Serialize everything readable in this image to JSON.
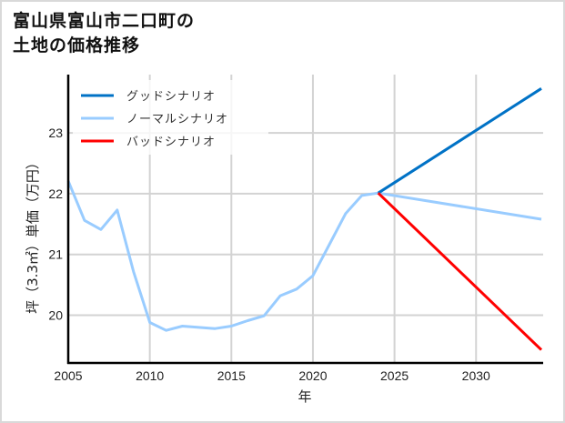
{
  "title": {
    "line1": "富山県富山市二口町の",
    "line2": "土地の価格推移"
  },
  "colors": {
    "good": "#0072c6",
    "normal": "#99ccff",
    "bad": "#ff0000",
    "grid": "#d3d3d3",
    "axis": "#000000",
    "border": "#d9d9d9"
  },
  "chart_data": {
    "type": "line",
    "title": "富山県富山市二口町の土地の価格推移",
    "xlabel": "年",
    "ylabel": "坪（3.3㎡）単価（万円）",
    "xlim": [
      2005,
      2034
    ],
    "ylim": [
      19.3,
      24.0
    ],
    "x_ticks": [
      2005,
      2010,
      2015,
      2020,
      2025,
      2030
    ],
    "y_ticks": [
      20,
      21,
      22,
      23
    ],
    "grid": true,
    "legend_position": "upper left",
    "legend": [
      "グッドシナリオ",
      "ノーマルシナリオ",
      "バッドシナリオ"
    ],
    "series": [
      {
        "name": "ノーマルシナリオ",
        "color": "#99ccff",
        "x": [
          2005,
          2006,
          2007,
          2008,
          2009,
          2010,
          2011,
          2012,
          2013,
          2014,
          2015,
          2016,
          2017,
          2018,
          2019,
          2020,
          2021,
          2022,
          2023,
          2024,
          2034
        ],
        "values": [
          22.21,
          21.56,
          21.41,
          21.73,
          20.72,
          19.88,
          19.75,
          19.82,
          19.8,
          19.78,
          19.82,
          19.91,
          19.99,
          20.32,
          20.43,
          20.65,
          21.16,
          21.67,
          21.97,
          22.01,
          21.58
        ]
      },
      {
        "name": "グッドシナリオ",
        "color": "#0072c6",
        "x": [
          2024,
          2034
        ],
        "values": [
          22.01,
          23.73
        ]
      },
      {
        "name": "バッドシナリオ",
        "color": "#ff0000",
        "x": [
          2024,
          2034
        ],
        "values": [
          22.01,
          19.43
        ]
      }
    ]
  }
}
